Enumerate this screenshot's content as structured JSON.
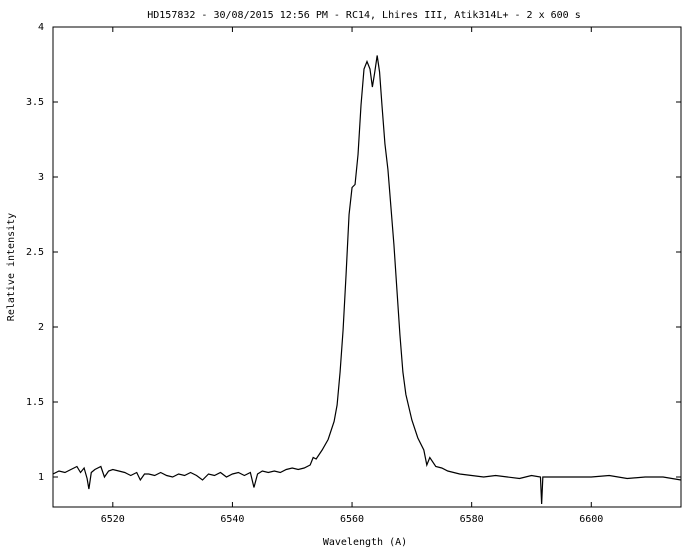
{
  "chart_data": {
    "type": "line",
    "title": "HD157832 - 30/08/2015 12:56 PM - RC14, Lhires III, Atik314L+ - 2 x 600 s",
    "xlabel": "Wavelength (A)",
    "ylabel": "Relative intensity",
    "xlim": [
      6510,
      6615
    ],
    "ylim": [
      0.8,
      4.0
    ],
    "x_ticks": [
      6520,
      6540,
      6560,
      6580,
      6600
    ],
    "y_ticks": [
      1,
      1.5,
      2,
      2.5,
      3,
      3.5,
      4
    ],
    "x_tick_labels": [
      "6520",
      "6540",
      "6560",
      "6580",
      "6600"
    ],
    "y_tick_labels": [
      "1",
      "1.5",
      "2",
      "2.5",
      "3",
      "3.5",
      "4"
    ],
    "grid": false,
    "legend": "none",
    "series": [
      {
        "color": "#000000",
        "points": [
          [
            6510.0,
            1.02
          ],
          [
            6511.0,
            1.04
          ],
          [
            6512.0,
            1.03
          ],
          [
            6513.0,
            1.05
          ],
          [
            6514.0,
            1.07
          ],
          [
            6514.6,
            1.03
          ],
          [
            6515.2,
            1.06
          ],
          [
            6515.7,
            0.99
          ],
          [
            6516.0,
            0.92
          ],
          [
            6516.4,
            1.03
          ],
          [
            6517.0,
            1.05
          ],
          [
            6518.0,
            1.07
          ],
          [
            6518.6,
            1.0
          ],
          [
            6519.3,
            1.04
          ],
          [
            6520.0,
            1.05
          ],
          [
            6521.0,
            1.04
          ],
          [
            6522.0,
            1.03
          ],
          [
            6523.0,
            1.01
          ],
          [
            6524.0,
            1.03
          ],
          [
            6524.6,
            0.98
          ],
          [
            6525.3,
            1.02
          ],
          [
            6526.0,
            1.02
          ],
          [
            6527.0,
            1.01
          ],
          [
            6528.0,
            1.03
          ],
          [
            6529.0,
            1.01
          ],
          [
            6530.0,
            1.0
          ],
          [
            6531.0,
            1.02
          ],
          [
            6532.0,
            1.01
          ],
          [
            6533.0,
            1.03
          ],
          [
            6534.0,
            1.01
          ],
          [
            6535.0,
            0.98
          ],
          [
            6536.0,
            1.02
          ],
          [
            6537.0,
            1.01
          ],
          [
            6538.0,
            1.03
          ],
          [
            6539.0,
            1.0
          ],
          [
            6540.0,
            1.02
          ],
          [
            6541.0,
            1.03
          ],
          [
            6542.0,
            1.01
          ],
          [
            6543.0,
            1.03
          ],
          [
            6543.6,
            0.93
          ],
          [
            6544.2,
            1.02
          ],
          [
            6545.0,
            1.04
          ],
          [
            6546.0,
            1.03
          ],
          [
            6547.0,
            1.04
          ],
          [
            6548.0,
            1.03
          ],
          [
            6549.0,
            1.05
          ],
          [
            6550.0,
            1.06
          ],
          [
            6551.0,
            1.05
          ],
          [
            6552.0,
            1.06
          ],
          [
            6553.0,
            1.08
          ],
          [
            6553.5,
            1.13
          ],
          [
            6554.0,
            1.12
          ],
          [
            6555.0,
            1.18
          ],
          [
            6556.0,
            1.25
          ],
          [
            6557.0,
            1.37
          ],
          [
            6557.5,
            1.48
          ],
          [
            6558.0,
            1.7
          ],
          [
            6558.5,
            1.98
          ],
          [
            6559.0,
            2.35
          ],
          [
            6559.5,
            2.75
          ],
          [
            6560.0,
            2.93
          ],
          [
            6560.5,
            2.95
          ],
          [
            6561.0,
            3.15
          ],
          [
            6561.5,
            3.48
          ],
          [
            6562.0,
            3.72
          ],
          [
            6562.5,
            3.77
          ],
          [
            6563.0,
            3.72
          ],
          [
            6563.4,
            3.6
          ],
          [
            6563.8,
            3.7
          ],
          [
            6564.2,
            3.81
          ],
          [
            6564.6,
            3.7
          ],
          [
            6565.0,
            3.48
          ],
          [
            6565.5,
            3.22
          ],
          [
            6566.0,
            3.05
          ],
          [
            6566.5,
            2.8
          ],
          [
            6567.0,
            2.55
          ],
          [
            6567.5,
            2.25
          ],
          [
            6568.0,
            1.95
          ],
          [
            6568.5,
            1.7
          ],
          [
            6569.0,
            1.55
          ],
          [
            6570.0,
            1.38
          ],
          [
            6571.0,
            1.26
          ],
          [
            6572.0,
            1.18
          ],
          [
            6572.5,
            1.08
          ],
          [
            6573.0,
            1.13
          ],
          [
            6574.0,
            1.07
          ],
          [
            6575.0,
            1.06
          ],
          [
            6576.0,
            1.04
          ],
          [
            6577.0,
            1.03
          ],
          [
            6578.0,
            1.02
          ],
          [
            6580.0,
            1.01
          ],
          [
            6582.0,
            1.0
          ],
          [
            6584.0,
            1.01
          ],
          [
            6586.0,
            1.0
          ],
          [
            6588.0,
            0.99
          ],
          [
            6590.0,
            1.01
          ],
          [
            6591.5,
            1.0
          ],
          [
            6591.7,
            0.82
          ],
          [
            6591.9,
            1.0
          ],
          [
            6593.0,
            1.0
          ],
          [
            6596.0,
            1.0
          ],
          [
            6600.0,
            1.0
          ],
          [
            6603.0,
            1.01
          ],
          [
            6606.0,
            0.99
          ],
          [
            6609.0,
            1.0
          ],
          [
            6612.0,
            1.0
          ],
          [
            6615.0,
            0.98
          ]
        ]
      }
    ]
  }
}
